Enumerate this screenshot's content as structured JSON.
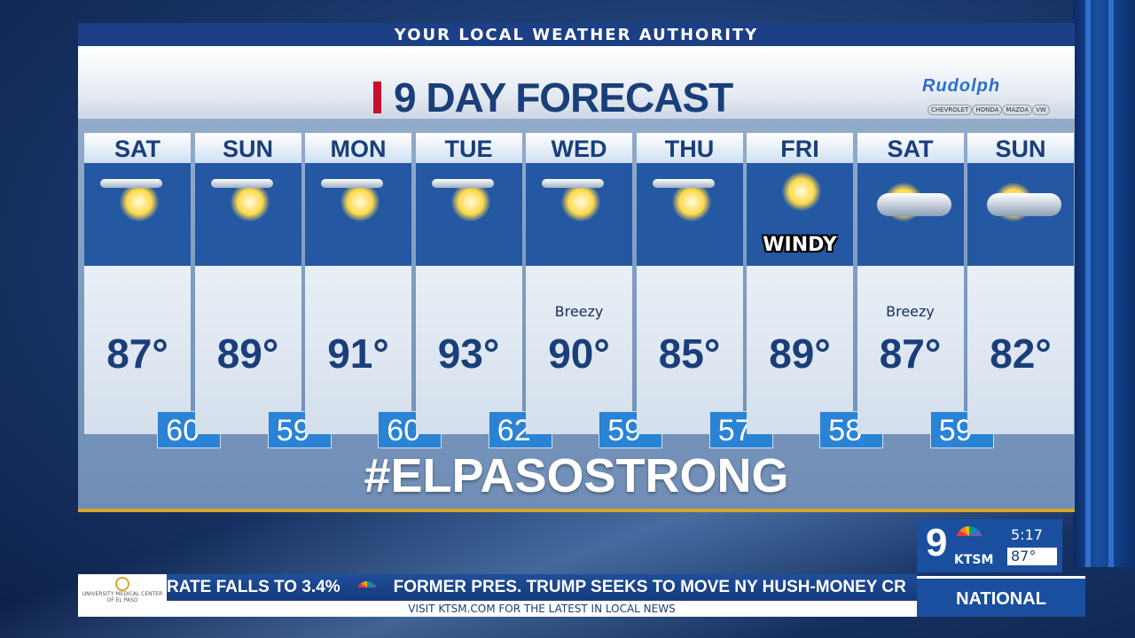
{
  "header": {
    "tagline": "YOUR LOCAL WEATHER AUTHORITY",
    "title": "9 DAY FORECAST",
    "sponsor": "Rudolph",
    "brands": [
      "CHEVROLET",
      "HONDA",
      "MAZDA",
      "VW"
    ]
  },
  "forecast": [
    {
      "day": "SAT",
      "icon": "mostly-sunny-icon",
      "note": "",
      "high": "87°",
      "low": "60°"
    },
    {
      "day": "SUN",
      "icon": "mostly-sunny-icon",
      "note": "",
      "high": "89°",
      "low": "59°"
    },
    {
      "day": "MON",
      "icon": "mostly-sunny-icon",
      "note": "",
      "high": "91°",
      "low": "60°"
    },
    {
      "day": "TUE",
      "icon": "mostly-sunny-icon",
      "note": "",
      "high": "93°",
      "low": "62°"
    },
    {
      "day": "WED",
      "icon": "mostly-sunny-icon",
      "note": "Breezy",
      "high": "90°",
      "low": "59°"
    },
    {
      "day": "THU",
      "icon": "mostly-sunny-icon",
      "note": "",
      "high": "85°",
      "low": "57°"
    },
    {
      "day": "FRI",
      "icon": "sunny-windy-icon",
      "note": "",
      "icon_text": "WINDY",
      "high": "89°",
      "low": "58°"
    },
    {
      "day": "SAT",
      "icon": "partly-cloudy-icon",
      "note": "Breezy",
      "high": "87°",
      "low": "59°"
    },
    {
      "day": "SUN",
      "icon": "partly-cloudy-icon",
      "note": "",
      "high": "82°"
    }
  ],
  "hashtag": "#ELPASOSTRONG",
  "bug": {
    "channel": "9",
    "call_letters": "KTSM",
    "time": "5:17",
    "temp": "87°"
  },
  "ticker": {
    "sponsor_logo": "UNIVERSITY MEDICAL CENTER OF EL PASO",
    "headline_1": "RATE FALLS TO 3.4%",
    "headline_2": "FORMER PRES. TRUMP SEEKS TO MOVE NY HUSH-MONEY CR",
    "subline": "VISIT KTSM.COM FOR THE LATEST IN LOCAL NEWS",
    "section": "NATIONAL"
  },
  "colors": {
    "accent_blue": "#1a3e7a",
    "low_box": "#2a83d4",
    "gold_rule": "#d9a52b",
    "red_mark": "#c8102e"
  }
}
